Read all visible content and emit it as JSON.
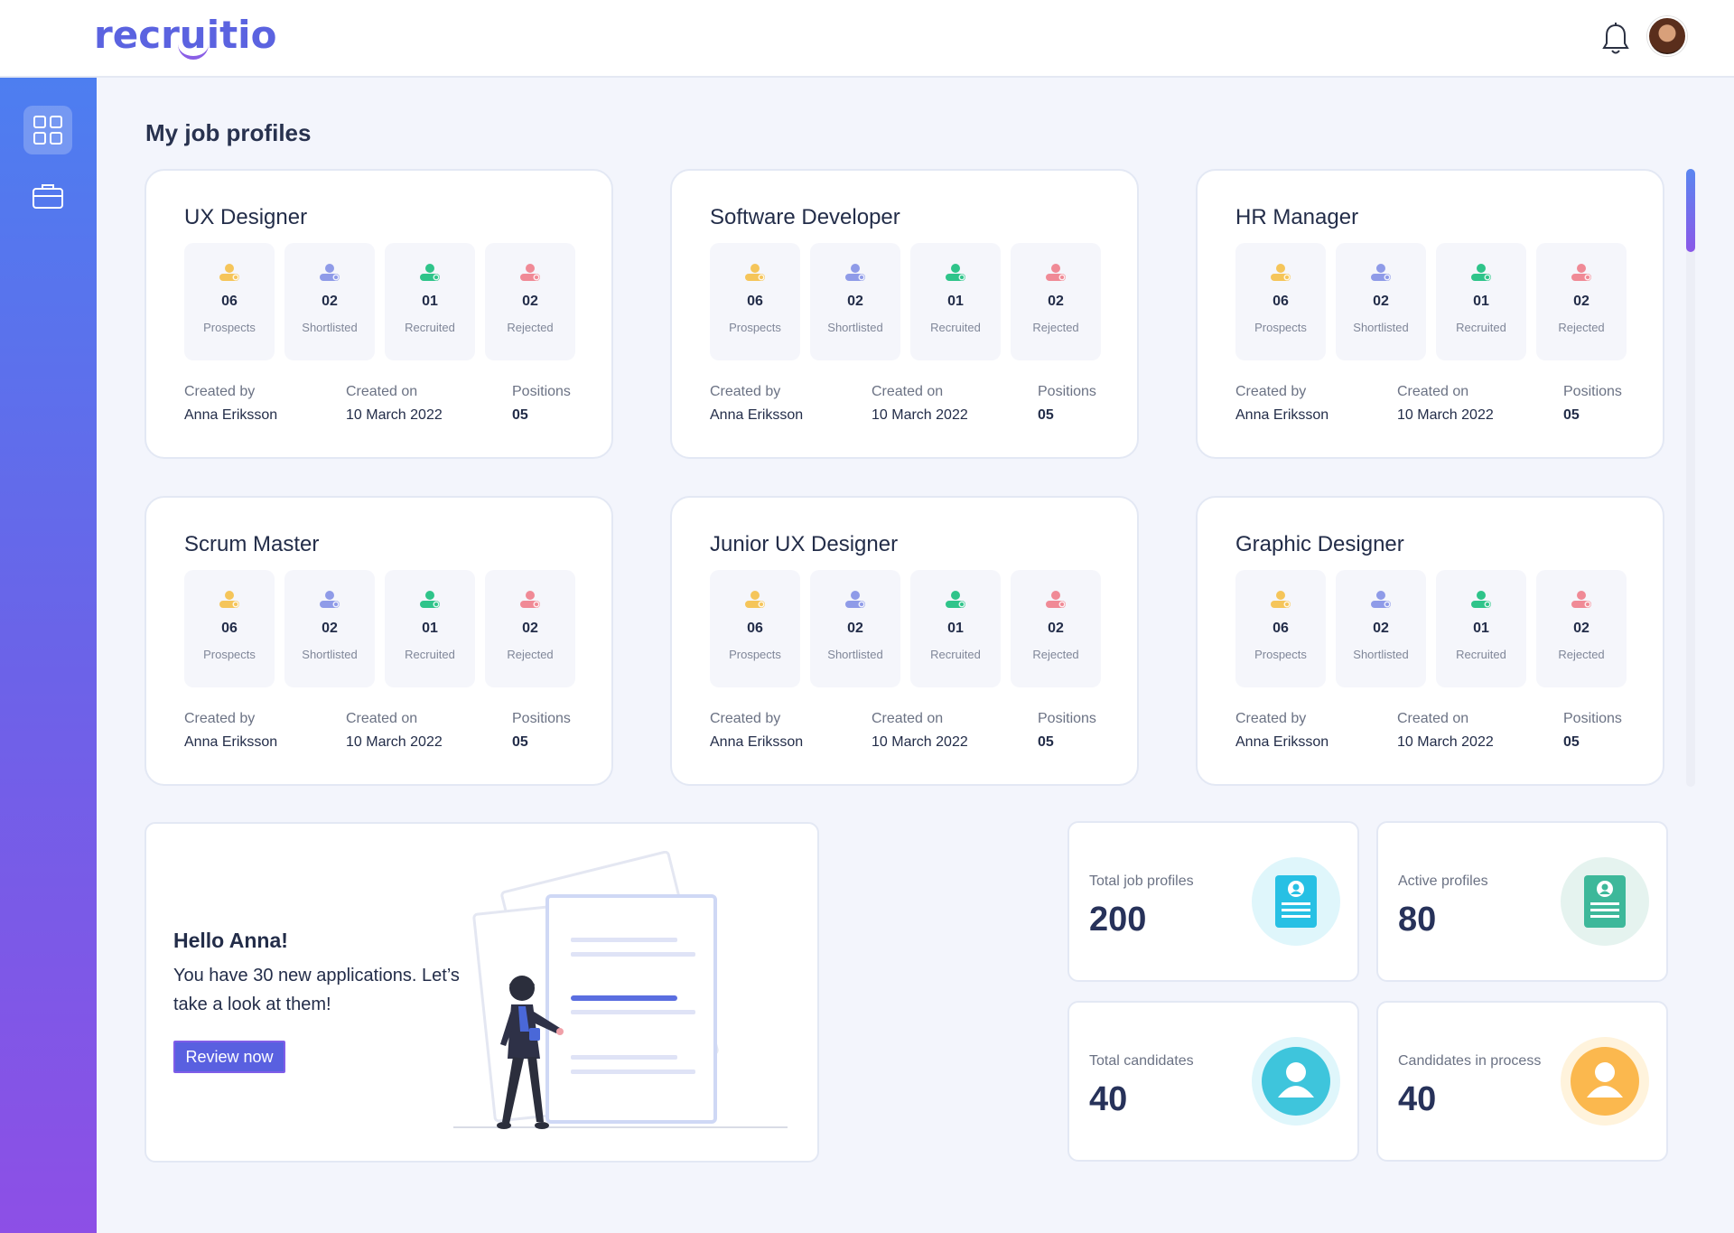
{
  "app": {
    "logo": "recruitio"
  },
  "page": {
    "title": "My job profiles"
  },
  "labels": {
    "created_by": "Created by",
    "created_on": "Created on",
    "positions": "Positions",
    "prospects": "Prospects",
    "shortlisted": "Shortlisted",
    "recruited": "Recruited",
    "rejected": "Rejected"
  },
  "colors": {
    "prospects": "#f5c55a",
    "shortlisted": "#8f9be8",
    "recruited": "#2fc48a",
    "rejected": "#f08a96",
    "accent": "#5960e0"
  },
  "jobs": [
    {
      "title": "UX Designer",
      "prospects": "06",
      "shortlisted": "02",
      "recruited": "01",
      "rejected": "02",
      "created_by": "Anna Eriksson",
      "created_on": "10 March 2022",
      "positions": "05"
    },
    {
      "title": "Software Developer",
      "prospects": "06",
      "shortlisted": "02",
      "recruited": "01",
      "rejected": "02",
      "created_by": "Anna Eriksson",
      "created_on": "10 March 2022",
      "positions": "05"
    },
    {
      "title": "HR Manager",
      "prospects": "06",
      "shortlisted": "02",
      "recruited": "01",
      "rejected": "02",
      "created_by": "Anna Eriksson",
      "created_on": "10 March 2022",
      "positions": "05"
    },
    {
      "title": "Scrum Master",
      "prospects": "06",
      "shortlisted": "02",
      "recruited": "01",
      "rejected": "02",
      "created_by": "Anna Eriksson",
      "created_on": "10 March 2022",
      "positions": "05"
    },
    {
      "title": "Junior UX Designer",
      "prospects": "06",
      "shortlisted": "02",
      "recruited": "01",
      "rejected": "02",
      "created_by": "Anna Eriksson",
      "created_on": "10 March 2022",
      "positions": "05"
    },
    {
      "title": "Graphic Designer",
      "prospects": "06",
      "shortlisted": "02",
      "recruited": "01",
      "rejected": "02",
      "created_by": "Anna Eriksson",
      "created_on": "10 March 2022",
      "positions": "05"
    }
  ],
  "hello": {
    "title": "Hello Anna!",
    "message": "You have 30 new applications. Let’s take a look at them!",
    "button": "Review now"
  },
  "kpis": [
    {
      "label": "Total job profiles",
      "value": "200",
      "icon": "job-profile-icon"
    },
    {
      "label": "Active profiles",
      "value": "80",
      "icon": "active-profile-icon"
    },
    {
      "label": "Total candidates",
      "value": "40",
      "icon": "candidate-icon"
    },
    {
      "label": "Candidates in process",
      "value": "40",
      "icon": "candidate-process-icon"
    }
  ]
}
